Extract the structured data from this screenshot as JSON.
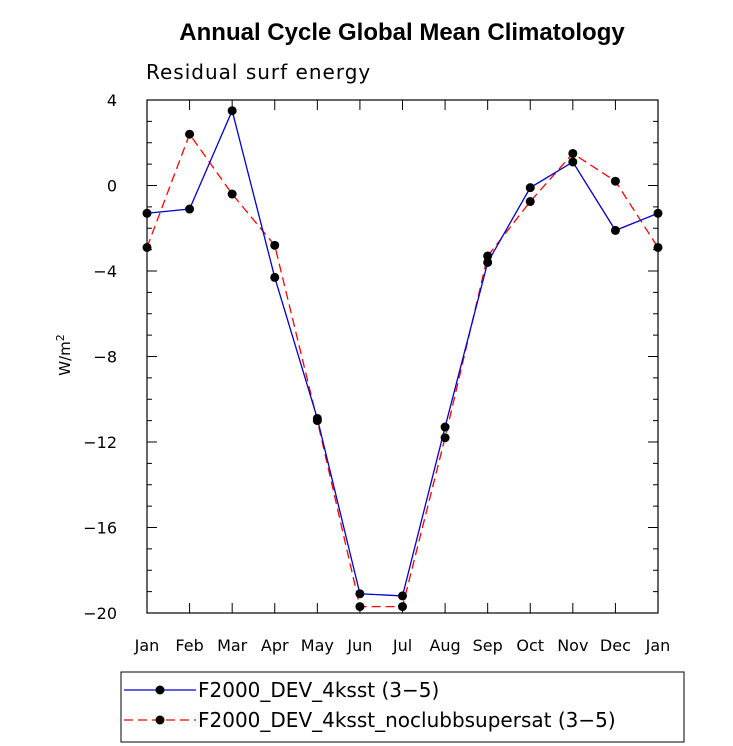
{
  "chart_data": {
    "type": "line",
    "title": "Annual Cycle Global Mean Climatology",
    "subtitle": "Residual surf energy",
    "xlabel": "",
    "ylabel": "W/m",
    "ylabel_superscript": "2",
    "categories": [
      "Jan",
      "Feb",
      "Mar",
      "Apr",
      "May",
      "Jun",
      "Jul",
      "Aug",
      "Sep",
      "Oct",
      "Nov",
      "Dec",
      "Jan"
    ],
    "ylim": [
      -20,
      4
    ],
    "yticks": [
      4,
      0,
      -4,
      -8,
      -12,
      -16,
      -20
    ],
    "ytick_labels": [
      "4",
      "0",
      "−4",
      "−8",
      "−12",
      "−16",
      "−20"
    ],
    "series": [
      {
        "name": "F2000_DEV_4ksst (3−5)",
        "color": "#0000cc",
        "dash": "solid",
        "values": [
          -1.3,
          -1.1,
          3.5,
          -4.3,
          -10.9,
          -19.1,
          -19.2,
          -11.3,
          -3.6,
          -0.1,
          1.1,
          -2.1,
          -1.3
        ]
      },
      {
        "name": "F2000_DEV_4ksst_noclubbsupersat (3−5)",
        "color": "#ff0000",
        "dash": "dashed",
        "values": [
          -2.9,
          2.4,
          -0.4,
          -2.8,
          -11.0,
          -19.7,
          -19.7,
          -11.8,
          -3.3,
          -0.75,
          1.5,
          0.2,
          -2.9
        ]
      }
    ],
    "marker_color": "#000000",
    "legend_position": "bottom"
  }
}
